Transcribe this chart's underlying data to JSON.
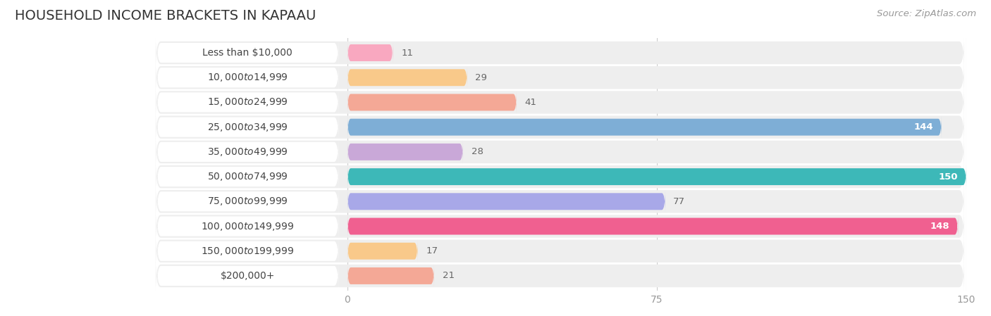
{
  "title": "HOUSEHOLD INCOME BRACKETS IN KAPAAU",
  "source": "Source: ZipAtlas.com",
  "categories": [
    "Less than $10,000",
    "$10,000 to $14,999",
    "$15,000 to $24,999",
    "$25,000 to $34,999",
    "$35,000 to $49,999",
    "$50,000 to $74,999",
    "$75,000 to $99,999",
    "$100,000 to $149,999",
    "$150,000 to $199,999",
    "$200,000+"
  ],
  "values": [
    11,
    29,
    41,
    144,
    28,
    150,
    77,
    148,
    17,
    21
  ],
  "bar_colors": [
    "#f9a8c0",
    "#f9c98a",
    "#f4a896",
    "#7eaed6",
    "#c9a8d8",
    "#3db8b8",
    "#a8a8e8",
    "#f06090",
    "#f9c98a",
    "#f4a896"
  ],
  "row_bg_color": "#eeeeee",
  "label_bg_color": "#ffffff",
  "xlim": [
    0,
    150
  ],
  "xticks": [
    0,
    75,
    150
  ],
  "title_fontsize": 14,
  "label_fontsize": 10,
  "value_fontsize": 9.5,
  "source_fontsize": 9.5,
  "title_color": "#333333",
  "label_color": "#444444",
  "value_color_outside": "#666666",
  "value_color_inside": "#ffffff",
  "source_color": "#999999",
  "tick_color": "#999999",
  "gridline_color": "#cccccc"
}
